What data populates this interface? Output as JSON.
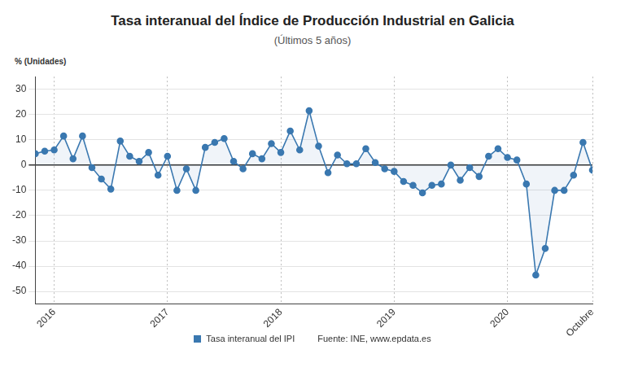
{
  "chart_data": {
    "type": "line",
    "title": "Tasa interanual del Índice de Producción Industrial en Galicia",
    "subtitle": "(Últimos 5 años)",
    "y_label": "% (Unidades)",
    "source": "Fuente: INE, www.epdata.es",
    "categories": [
      null,
      null,
      "2016",
      null,
      null,
      null,
      null,
      null,
      null,
      null,
      null,
      null,
      null,
      null,
      "2017",
      null,
      null,
      null,
      null,
      null,
      null,
      null,
      null,
      null,
      null,
      null,
      "2018",
      null,
      null,
      null,
      null,
      null,
      null,
      null,
      null,
      null,
      null,
      null,
      "2019",
      null,
      null,
      null,
      null,
      null,
      null,
      null,
      null,
      null,
      null,
      null,
      "2020",
      null,
      null,
      null,
      null,
      null,
      null,
      null,
      null,
      "Octubre"
    ],
    "series": [
      {
        "name": "Tasa interanual del IPI",
        "color": "#3a78b0",
        "values": [
          4.5,
          5.5,
          6,
          11.5,
          2.5,
          11.5,
          -1,
          -5.5,
          -9.5,
          9.5,
          3.5,
          1.5,
          5,
          -4,
          3.5,
          -10,
          -1.5,
          -10,
          7,
          9,
          10.5,
          1.5,
          -1.5,
          4.5,
          2.5,
          8.5,
          5,
          13.5,
          6,
          21.5,
          7.5,
          -3,
          4,
          0.5,
          0.5,
          6.5,
          1,
          -1.5,
          -2.5,
          -6.5,
          -8,
          -11,
          -8,
          -7.5,
          0,
          -6,
          -1,
          -4.5,
          3.5,
          6.5,
          3,
          2,
          -7.5,
          -43.5,
          -33,
          -10,
          -10,
          -4,
          9,
          -2
        ]
      }
    ],
    "ylim": [
      -55,
      35
    ],
    "yticks": [
      -50,
      -40,
      -30,
      -20,
      -10,
      0,
      10,
      20,
      30
    ],
    "grid": true,
    "legend": "bottom",
    "marker": "circle"
  }
}
